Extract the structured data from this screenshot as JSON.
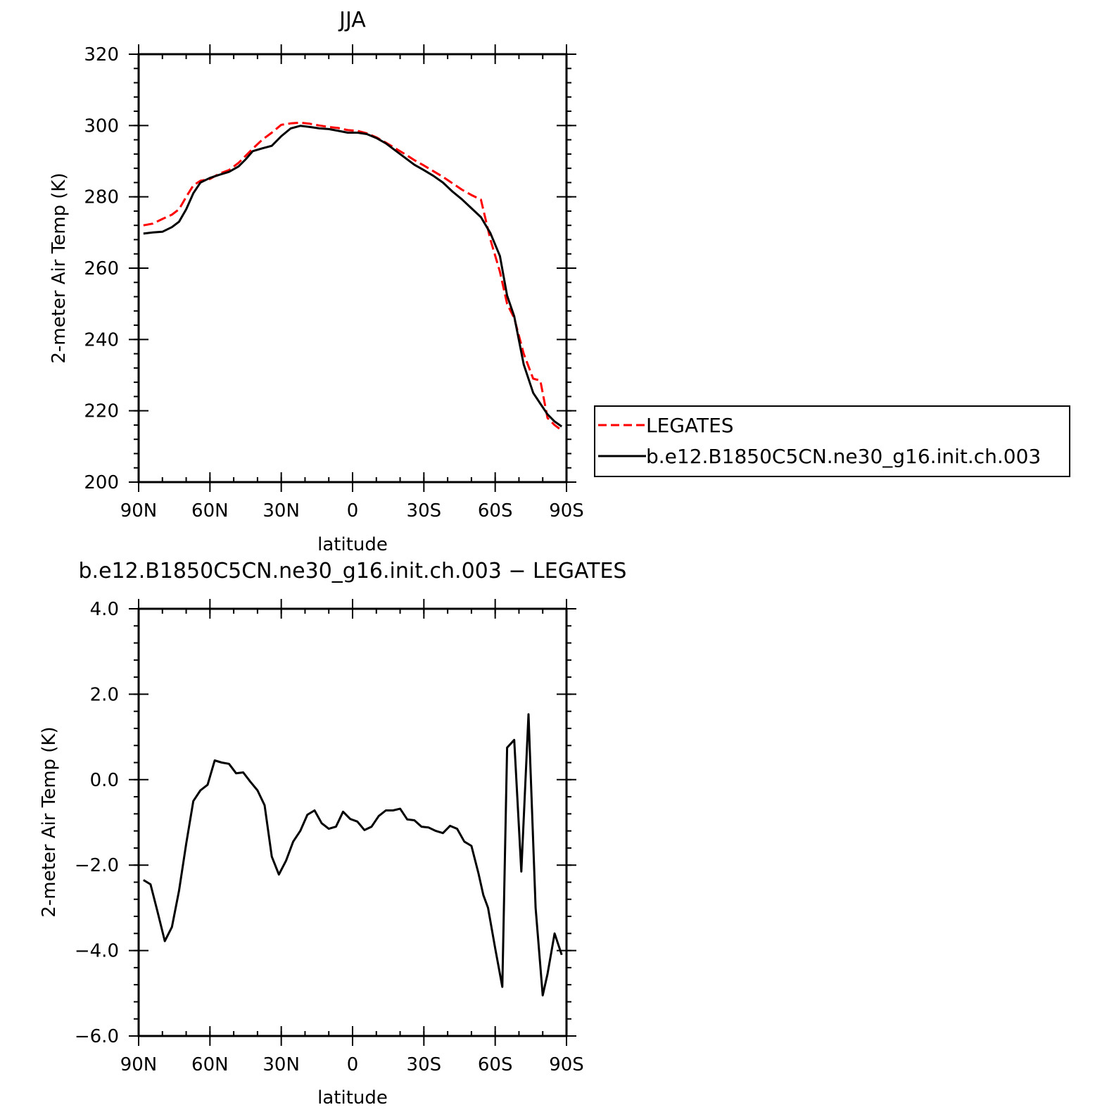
{
  "chart_data": [
    {
      "type": "line",
      "title": "JJA",
      "xlabel": "latitude",
      "ylabel": "2-meter Air Temp (K)",
      "xlim": [
        90,
        -90
      ],
      "ylim": [
        200,
        320
      ],
      "x_ticks": [
        {
          "value": 90,
          "label": "90N"
        },
        {
          "value": 60,
          "label": "60N"
        },
        {
          "value": 30,
          "label": "30N"
        },
        {
          "value": 0,
          "label": "0"
        },
        {
          "value": -30,
          "label": "30S"
        },
        {
          "value": -60,
          "label": "60S"
        },
        {
          "value": -90,
          "label": "90S"
        }
      ],
      "y_ticks": [
        {
          "value": 200,
          "label": "200"
        },
        {
          "value": 220,
          "label": "220"
        },
        {
          "value": 240,
          "label": "240"
        },
        {
          "value": 260,
          "label": "260"
        },
        {
          "value": 280,
          "label": "280"
        },
        {
          "value": 300,
          "label": "300"
        },
        {
          "value": 320,
          "label": "320"
        }
      ],
      "y_minor_step": 4,
      "x_minor_step": 10,
      "legend_position": "right",
      "series": [
        {
          "name": "LEGATES",
          "color": "#ff0000",
          "style": "dashed",
          "x": [
            88,
            84,
            80,
            76,
            73,
            70,
            67,
            64,
            60,
            56,
            52,
            48,
            45,
            42,
            38,
            34,
            30,
            26,
            22,
            18,
            14,
            10,
            6,
            2,
            -2,
            -6,
            -10,
            -14,
            -18,
            -22,
            -26,
            -30,
            -34,
            -38,
            -42,
            -46,
            -50,
            -54,
            -58,
            -62,
            -65,
            -68,
            -72,
            -76,
            -79,
            -82,
            -85,
            -88
          ],
          "values": [
            272,
            272.5,
            273.8,
            275,
            276.5,
            280,
            283.2,
            284.5,
            285,
            286.5,
            287.5,
            289.5,
            291.5,
            293.5,
            296,
            298,
            300.2,
            300.6,
            300.8,
            300.5,
            300,
            299.6,
            299.3,
            298.7,
            298.5,
            297.8,
            296.7,
            295.2,
            293.6,
            292,
            290.3,
            288.8,
            287.2,
            285.6,
            283.8,
            282,
            280.5,
            279.2,
            268,
            259,
            250,
            246,
            236,
            229,
            228.5,
            218,
            216,
            214.5
          ]
        },
        {
          "name": "b.e12.B1850C5CN.ne30_g16.init.ch.003",
          "color": "#000000",
          "style": "solid",
          "x": [
            88,
            84,
            80,
            76,
            73,
            70,
            67,
            64,
            60,
            56,
            52,
            48,
            45,
            42,
            38,
            34,
            30,
            26,
            22,
            18,
            14,
            10,
            6,
            2,
            -2,
            -6,
            -10,
            -14,
            -18,
            -22,
            -26,
            -30,
            -34,
            -38,
            -42,
            -46,
            -50,
            -54,
            -58,
            -62,
            -65,
            -68,
            -72,
            -76,
            -79,
            -82,
            -85,
            -88
          ],
          "values": [
            269.7,
            270,
            270.2,
            271.5,
            273,
            276.5,
            281,
            284,
            285.3,
            286.2,
            287,
            288.5,
            290.5,
            292.8,
            293.6,
            294.3,
            297,
            299.2,
            299.9,
            299.6,
            299.2,
            299,
            298.5,
            298,
            298,
            297.6,
            296.5,
            295,
            293,
            291,
            289,
            287.5,
            285.9,
            284,
            281.5,
            279.3,
            276.8,
            274.3,
            269.8,
            263.4,
            252.3,
            246.5,
            233,
            225,
            222,
            219,
            217,
            215.6
          ]
        }
      ]
    },
    {
      "type": "line",
      "title": "b.e12.B1850C5CN.ne30_g16.init.ch.003 − LEGATES",
      "xlabel": "latitude",
      "ylabel": "2-meter Air Temp (K)",
      "xlim": [
        90,
        -90
      ],
      "ylim": [
        -6,
        4
      ],
      "x_ticks": [
        {
          "value": 90,
          "label": "90N"
        },
        {
          "value": 60,
          "label": "60N"
        },
        {
          "value": 30,
          "label": "30N"
        },
        {
          "value": 0,
          "label": "0"
        },
        {
          "value": -30,
          "label": "30S"
        },
        {
          "value": -60,
          "label": "60S"
        },
        {
          "value": -90,
          "label": "90S"
        }
      ],
      "y_ticks": [
        {
          "value": -6,
          "label": "−6.0"
        },
        {
          "value": -4,
          "label": "−4.0"
        },
        {
          "value": -2,
          "label": "−2.0"
        },
        {
          "value": 0,
          "label": "0.0"
        },
        {
          "value": 2,
          "label": "2.0"
        },
        {
          "value": 4,
          "label": "4.0"
        }
      ],
      "y_minor_step": 0.4,
      "x_minor_step": 10,
      "series": [
        {
          "color": "#000000",
          "style": "solid",
          "x": [
            88,
            85,
            82,
            79,
            76,
            73,
            70,
            67,
            64,
            61,
            58,
            55,
            52,
            49,
            46,
            43,
            40,
            37,
            34,
            31,
            28,
            25,
            22,
            19,
            16,
            13,
            10,
            7,
            4,
            1,
            -2,
            -5,
            -8,
            -11,
            -14,
            -17,
            -20,
            -23,
            -26,
            -29,
            -32,
            -35,
            -38,
            -41,
            -44,
            -47,
            -50,
            -53,
            -55,
            -57,
            -60,
            -63,
            -65,
            -68,
            -71,
            -74,
            -77,
            -80,
            -82,
            -85,
            -88
          ],
          "values": [
            -2.35,
            -2.45,
            -3.1,
            -3.78,
            -3.45,
            -2.6,
            -1.5,
            -0.5,
            -0.25,
            -0.12,
            0.45,
            0.4,
            0.37,
            0.15,
            0.17,
            -0.05,
            -0.25,
            -0.6,
            -1.8,
            -2.22,
            -1.9,
            -1.45,
            -1.2,
            -0.82,
            -0.72,
            -1.02,
            -1.15,
            -1.1,
            -0.75,
            -0.92,
            -0.98,
            -1.18,
            -1.1,
            -0.85,
            -0.72,
            -0.72,
            -0.68,
            -0.93,
            -0.95,
            -1.1,
            -1.12,
            -1.2,
            -1.25,
            -1.08,
            -1.15,
            -1.45,
            -1.55,
            -2.2,
            -2.7,
            -3.0,
            -3.95,
            -4.85,
            0.75,
            0.93,
            -2.15,
            1.53,
            -3.0,
            -5.05,
            -4.55,
            -3.6,
            -4.1
          ]
        }
      ]
    }
  ],
  "legend": {
    "items": [
      {
        "label": "LEGATES",
        "color": "#ff0000",
        "style": "dashed"
      },
      {
        "label": "b.e12.B1850C5CN.ne30_g16.init.ch.003",
        "color": "#000000",
        "style": "solid"
      }
    ]
  }
}
